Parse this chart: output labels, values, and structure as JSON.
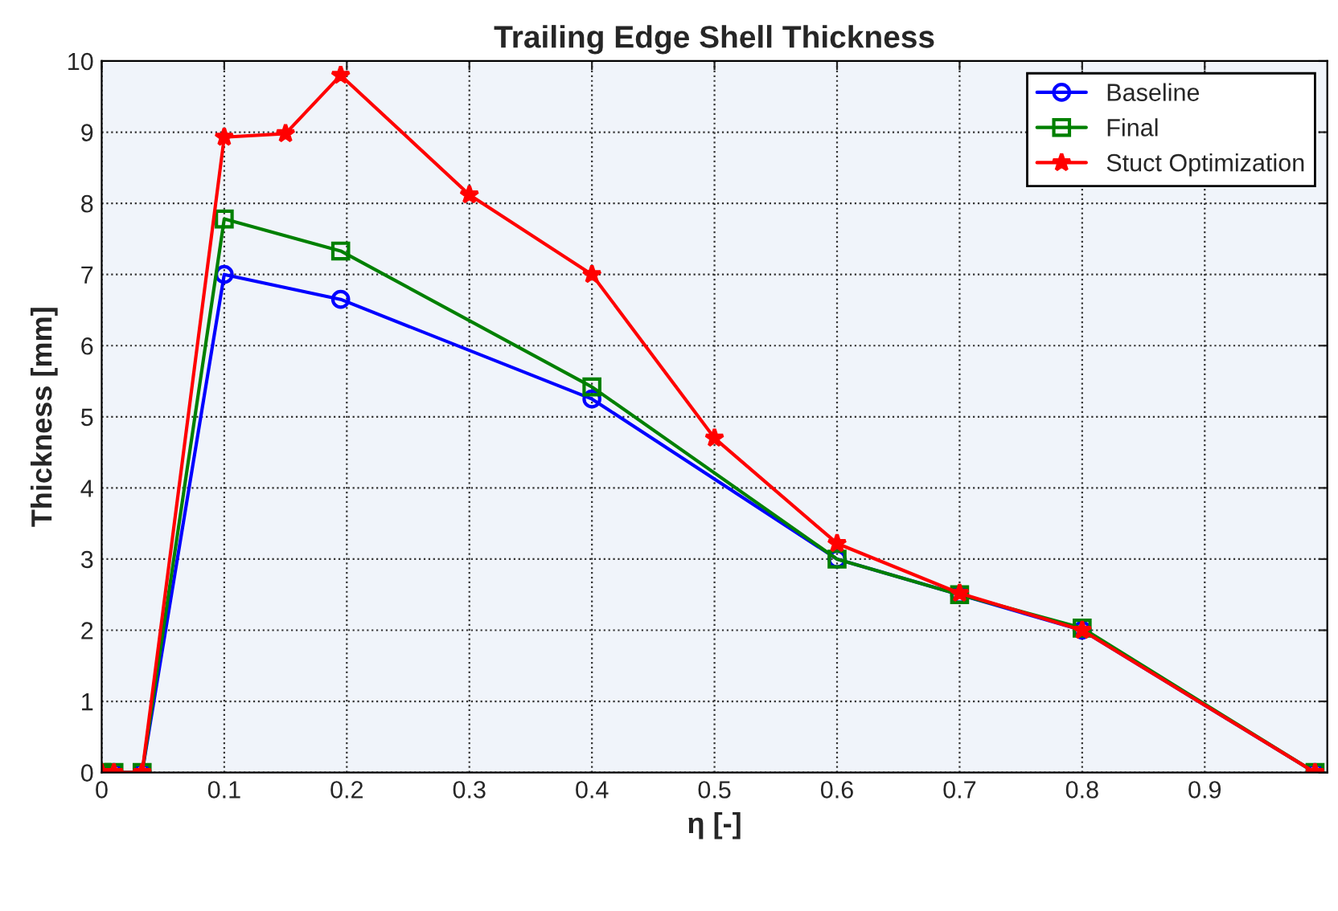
{
  "chart_data": {
    "type": "line",
    "title": "Trailing Edge Shell Thickness",
    "xlabel": "η [-]",
    "ylabel": "Thickness [mm]",
    "xlim": [
      0,
      1
    ],
    "ylim": [
      0,
      10
    ],
    "xticks": [
      0,
      0.1,
      0.2,
      0.3,
      0.4,
      0.5,
      0.6,
      0.7,
      0.8,
      0.9
    ],
    "yticks": [
      0,
      1,
      2,
      3,
      4,
      5,
      6,
      7,
      8,
      9,
      10
    ],
    "grid": true,
    "legend": "top right",
    "line_style": "solid",
    "series": [
      {
        "name": "Baseline",
        "color": "#0000ff",
        "marker": "circle",
        "x": [
          0,
          0.01,
          0.033,
          0.1,
          0.195,
          0.4,
          0.6,
          0.7,
          0.8,
          0.99
        ],
        "values": [
          0,
          0,
          0,
          7.0,
          6.65,
          5.25,
          3.0,
          2.5,
          2.0,
          0
        ]
      },
      {
        "name": "Final",
        "color": "#008000",
        "marker": "square",
        "x": [
          0,
          0.01,
          0.033,
          0.1,
          0.195,
          0.4,
          0.6,
          0.7,
          0.8,
          0.99
        ],
        "values": [
          0,
          0,
          0,
          7.78,
          7.33,
          5.42,
          3.0,
          2.5,
          2.03,
          0
        ]
      },
      {
        "name": "Stuct Optimization",
        "color": "#ff0000",
        "marker": "star",
        "x": [
          0,
          0.01,
          0.033,
          0.1,
          0.15,
          0.195,
          0.3,
          0.4,
          0.5,
          0.6,
          0.7,
          0.8,
          0.99
        ],
        "values": [
          0,
          0,
          0,
          8.93,
          8.98,
          9.8,
          8.12,
          7.0,
          4.7,
          3.22,
          2.52,
          2.0,
          0
        ]
      }
    ]
  }
}
